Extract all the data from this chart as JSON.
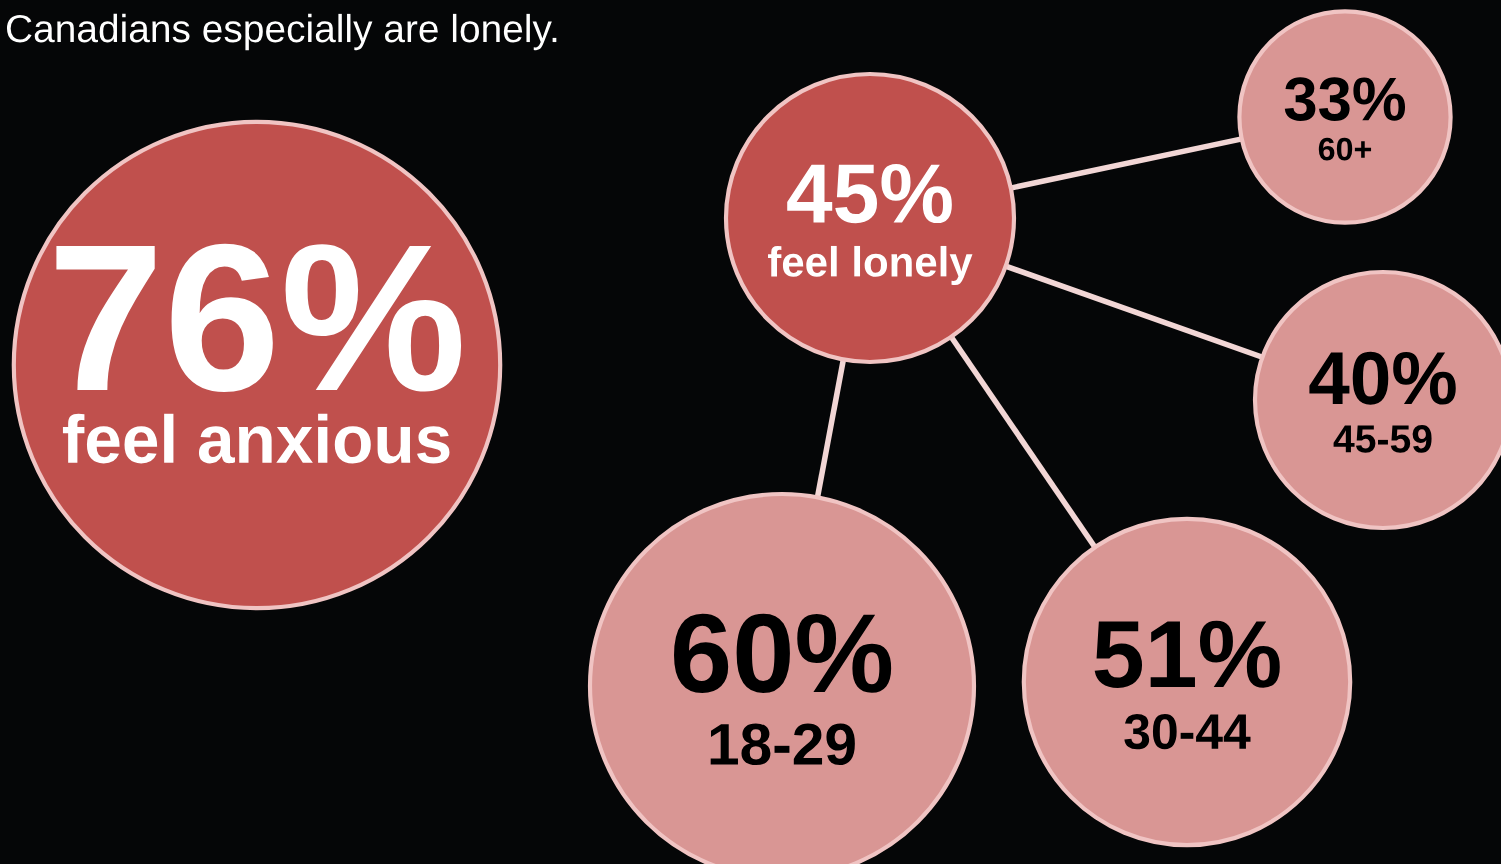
{
  "chart_data": {
    "type": "other",
    "title": "Canadians especially are lonely.",
    "categories": [
      "feel anxious",
      "feel lonely",
      "60+",
      "45-59",
      "30-44",
      "18-29"
    ],
    "values": [
      76,
      45,
      33,
      40,
      51,
      60
    ],
    "value_labels": [
      "76%",
      "45%",
      "33%",
      "40%",
      "51%",
      "60%"
    ],
    "colors": [
      "#c0504d",
      "#c0504d",
      "#d99694",
      "#d99694",
      "#d99694",
      "#d99694"
    ]
  }
}
